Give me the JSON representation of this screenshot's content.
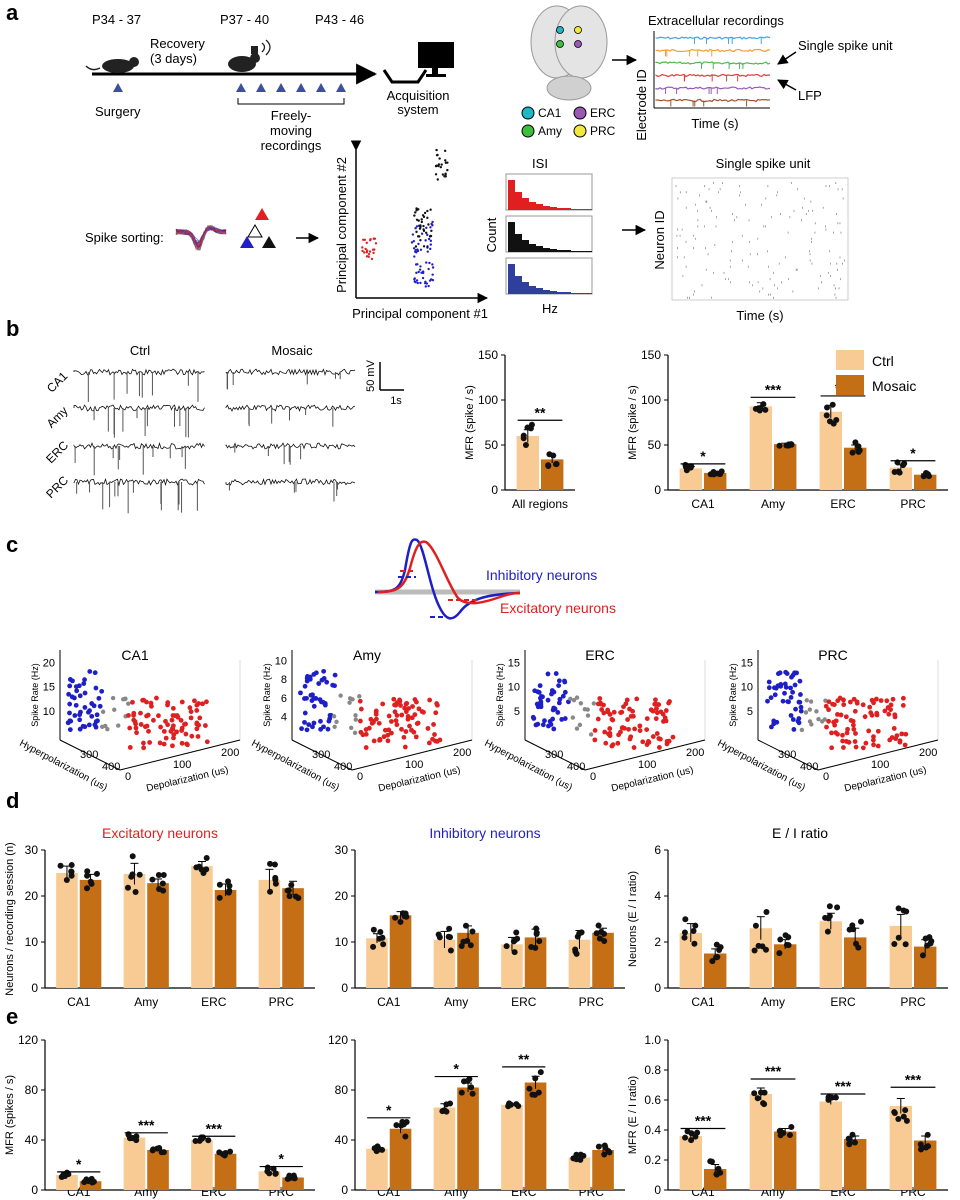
{
  "panels": {
    "a": "a",
    "b": "b",
    "c": "c",
    "d": "d",
    "e": "e"
  },
  "colors": {
    "ctrl": "#F9CB94",
    "mosaic": "#C46E15",
    "excitatory": "#E02020",
    "inhibitory": "#1F1FC8",
    "unclassified": "#888888",
    "ca1": "#1FB8C8",
    "amy": "#3CBF3C",
    "erc": "#9B59B6",
    "prc": "#F2E93B"
  },
  "panel_a": {
    "timeline": {
      "stage1": "P34 - 37",
      "recovery_line1": "Recovery",
      "recovery_line2": "(3 days)",
      "stage2": "P37 - 40",
      "stage3": "P43 - 46",
      "surgery": "Surgery",
      "freely_line1": "Freely-",
      "freely_line2": "moving",
      "freely_line3": "recordings",
      "acq_line1": "Acquisition",
      "acq_line2": "system"
    },
    "legend": [
      "CA1",
      "Amy",
      "ERC",
      "PRC"
    ],
    "extracellular": {
      "title": "Extracellular recordings",
      "ylabel": "Electrode ID",
      "xlabel": "Time (s)",
      "single": "Single spike unit",
      "lfp": "LFP"
    },
    "sorting": {
      "label": "Spike sorting:",
      "pc_y": "Principal component #2",
      "pc_x": "Principal component #1",
      "isi_title": "ISI",
      "isi_ylabel": "Count",
      "isi_xlabel": "Hz",
      "raster_title": "Single spike unit",
      "raster_ylabel": "Neuron ID",
      "raster_xlabel": "Time (s)"
    }
  },
  "panel_b": {
    "traces": {
      "ctrl": "Ctrl",
      "mosaic": "Mosaic",
      "regions": [
        "CA1",
        "Amy",
        "ERC",
        "PRC"
      ],
      "scale_v": "50 mV",
      "scale_t": "1s"
    }
  },
  "panel_c": {
    "inhibitory_label": "Inhibitory neurons",
    "excitatory_label": "Excitatory neurons",
    "plots": [
      {
        "title": "CA1",
        "z_ticks": [
          "10",
          "15",
          "20"
        ]
      },
      {
        "title": "Amy",
        "z_ticks": [
          "4",
          "6",
          "8",
          "10"
        ]
      },
      {
        "title": "ERC",
        "z_ticks": [
          "5",
          "10",
          "15"
        ]
      },
      {
        "title": "PRC",
        "z_ticks": [
          "5",
          "10",
          "15"
        ]
      }
    ],
    "zlabel": "Spike Rate (Hz)",
    "ylabel": "Hyperpolarization (us)",
    "xlabel": "Depolarization (us)",
    "y_ticks": [
      "300",
      "400"
    ],
    "x_ticks": [
      "0",
      "100",
      "200"
    ]
  },
  "chart_data": [
    {
      "id": "b_all",
      "type": "bar",
      "categories": [
        "All regions"
      ],
      "series": [
        {
          "name": "Ctrl",
          "values": [
            60
          ]
        },
        {
          "name": "Mosaic",
          "values": [
            34
          ]
        }
      ],
      "errors": [
        [
          7
        ],
        [
          4
        ]
      ],
      "ylabel": "MFR (spike / s)",
      "ylim": [
        0,
        150
      ],
      "yticks": [
        "0",
        "50",
        "100",
        "150"
      ],
      "significance": [
        "**"
      ]
    },
    {
      "id": "b_regions",
      "type": "bar",
      "categories": [
        "CA1",
        "Amy",
        "ERC",
        "PRC"
      ],
      "series": [
        {
          "name": "Ctrl",
          "values": [
            24,
            93,
            87,
            25
          ]
        },
        {
          "name": "Mosaic",
          "values": [
            19,
            51,
            47,
            17
          ]
        }
      ],
      "errors": [
        [
          2,
          4,
          7,
          3
        ],
        [
          1,
          1,
          3,
          1
        ]
      ],
      "ylabel": "MFR (spike / s)",
      "ylim": [
        0,
        150
      ],
      "yticks": [
        "0",
        "50",
        "100",
        "150"
      ],
      "legend": [
        "Ctrl",
        "Mosaic"
      ],
      "legend_position": "top-right",
      "significance": [
        "*",
        "***",
        "***",
        "*"
      ]
    },
    {
      "id": "d_exc",
      "type": "bar",
      "title": "Excitatory neurons",
      "categories": [
        "CA1",
        "Amy",
        "ERC",
        "PRC"
      ],
      "series": [
        {
          "name": "Ctrl",
          "values": [
            25,
            24.8,
            26.5,
            23.5
          ]
        },
        {
          "name": "Mosaic",
          "values": [
            23.5,
            22.8,
            21.3,
            21.7
          ]
        }
      ],
      "errors": [
        [
          1.5,
          2.3,
          1.0,
          2.3
        ],
        [
          1.2,
          0.9,
          1.3,
          1.5
        ]
      ],
      "ylabel": "Neurons / recording session (n)",
      "ylim": [
        0,
        30
      ],
      "yticks": [
        "0",
        "10",
        "20",
        "30"
      ],
      "significance": [
        "",
        "",
        "",
        ""
      ]
    },
    {
      "id": "d_inh",
      "type": "bar",
      "title": "Inhibitory neurons",
      "categories": [
        "CA1",
        "Amy",
        "ERC",
        "PRC"
      ],
      "series": [
        {
          "name": "Ctrl",
          "values": [
            10.8,
            10.5,
            9.5,
            10.5
          ]
        },
        {
          "name": "Mosaic",
          "values": [
            15.8,
            12.0,
            11.0,
            12.0
          ]
        }
      ],
      "errors": [
        [
          1.0,
          1.8,
          1.5,
          2.0
        ],
        [
          0.8,
          1.5,
          1.8,
          1.0
        ]
      ],
      "ylim": [
        0,
        30
      ],
      "yticks": [
        "0",
        "10",
        "20",
        "30"
      ],
      "significance": [
        "",
        "",
        "",
        ""
      ]
    },
    {
      "id": "d_ratio",
      "type": "bar",
      "title": "E / I ratio",
      "categories": [
        "CA1",
        "Amy",
        "ERC",
        "PRC"
      ],
      "series": [
        {
          "name": "Ctrl",
          "values": [
            2.4,
            2.6,
            2.9,
            2.7
          ]
        },
        {
          "name": "Mosaic",
          "values": [
            1.5,
            1.9,
            2.2,
            1.8
          ]
        }
      ],
      "errors": [
        [
          0.4,
          0.5,
          0.35,
          0.5
        ],
        [
          0.2,
          0.2,
          0.4,
          0.3
        ]
      ],
      "ylabel": "Neurons (E / I ratio)",
      "ylim": [
        0,
        6
      ],
      "yticks": [
        "0",
        "2",
        "4",
        "6"
      ],
      "significance": [
        "",
        "",
        "",
        ""
      ]
    },
    {
      "id": "e_exc",
      "type": "bar",
      "categories": [
        "CA1",
        "Amy",
        "ERC",
        "PRC"
      ],
      "series": [
        {
          "name": "Ctrl",
          "values": [
            12,
            42,
            40,
            15
          ]
        },
        {
          "name": "Mosaic",
          "values": [
            7,
            32,
            29,
            10
          ]
        }
      ],
      "errors": [
        [
          1,
          1.5,
          1.2,
          1.5
        ],
        [
          1,
          1,
          1,
          0.8
        ]
      ],
      "ylabel": "MFR (spikes / s)",
      "ylim": [
        0,
        120
      ],
      "yticks": [
        "0",
        "40",
        "80",
        "120"
      ],
      "significance": [
        "*",
        "***",
        "***",
        "*"
      ]
    },
    {
      "id": "e_inh",
      "type": "bar",
      "categories": [
        "CA1",
        "Amy",
        "ERC",
        "PRC"
      ],
      "series": [
        {
          "name": "Ctrl",
          "values": [
            33,
            66,
            68,
            26
          ]
        },
        {
          "name": "Mosaic",
          "values": [
            49,
            82,
            86,
            32
          ]
        }
      ],
      "errors": [
        [
          1.5,
          3,
          1,
          1.5
        ],
        [
          3.5,
          3.5,
          5,
          4
        ]
      ],
      "ylim": [
        0,
        120
      ],
      "yticks": [
        "0",
        "40",
        "80",
        "120"
      ],
      "significance": [
        "*",
        "*",
        "**",
        ""
      ]
    },
    {
      "id": "e_ratio",
      "type": "bar",
      "categories": [
        "CA1",
        "Amy",
        "ERC",
        "PRC"
      ],
      "series": [
        {
          "name": "Ctrl",
          "values": [
            0.36,
            0.64,
            0.59,
            0.56
          ]
        },
        {
          "name": "Mosaic",
          "values": [
            0.14,
            0.39,
            0.34,
            0.33
          ]
        }
      ],
      "errors": [
        [
          0.02,
          0.04,
          0.02,
          0.05
        ],
        [
          0.03,
          0.02,
          0.02,
          0.03
        ]
      ],
      "ylabel": "MFR (E / I ratio)",
      "ylim": [
        0,
        1.0
      ],
      "yticks": [
        "0",
        "0.2",
        "0.4",
        "0.6",
        "0.8",
        "1.0"
      ],
      "significance": [
        "***",
        "***",
        "***",
        "***"
      ]
    }
  ]
}
